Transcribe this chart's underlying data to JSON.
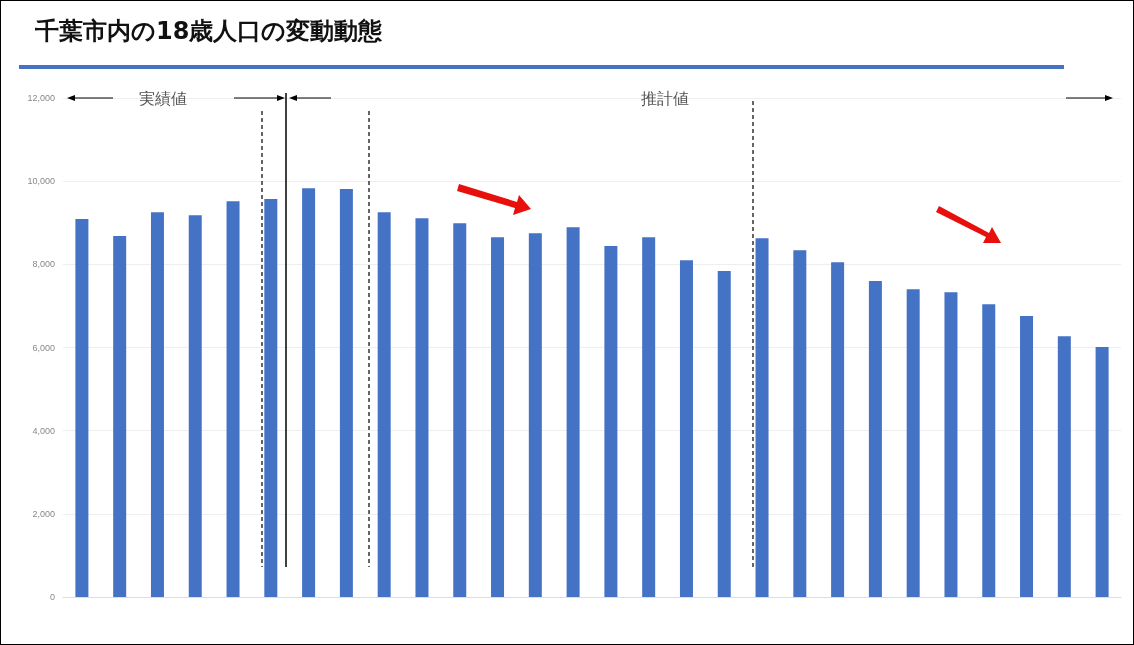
{
  "chart_data": {
    "type": "bar",
    "title": "千葉市内の18歳人口の変動動態",
    "categories": [
      null,
      null,
      null,
      null,
      null,
      null,
      null,
      null,
      null,
      null,
      null,
      null,
      null,
      null,
      null,
      null,
      null,
      null,
      null,
      null,
      null,
      null,
      null,
      null,
      null,
      null,
      null,
      null
    ],
    "values": [
      9090,
      8680,
      9250,
      9180,
      9520,
      9570,
      9830,
      9810,
      9250,
      9110,
      8990,
      8650,
      8750,
      8890,
      8440,
      8650,
      8100,
      7840,
      8630,
      8340,
      8050,
      7600,
      7400,
      7330,
      7040,
      6760,
      6270,
      6010
    ],
    "color": "#4472c4",
    "ylim": [
      0,
      12000
    ],
    "yticks": [
      0,
      {
        "value": 2000,
        "label": "2,000"
      },
      {
        "value": 4000,
        "label": "4,000"
      },
      {
        "value": 6000,
        "label": "6,000"
      },
      {
        "value": 8000,
        "label": "8,000"
      },
      {
        "value": 10000,
        "label": "10,000"
      },
      {
        "value": 12000,
        "label": "12,000"
      }
    ],
    "grid": "y",
    "annotations": [
      "実績値",
      "推計値"
    ]
  }
}
